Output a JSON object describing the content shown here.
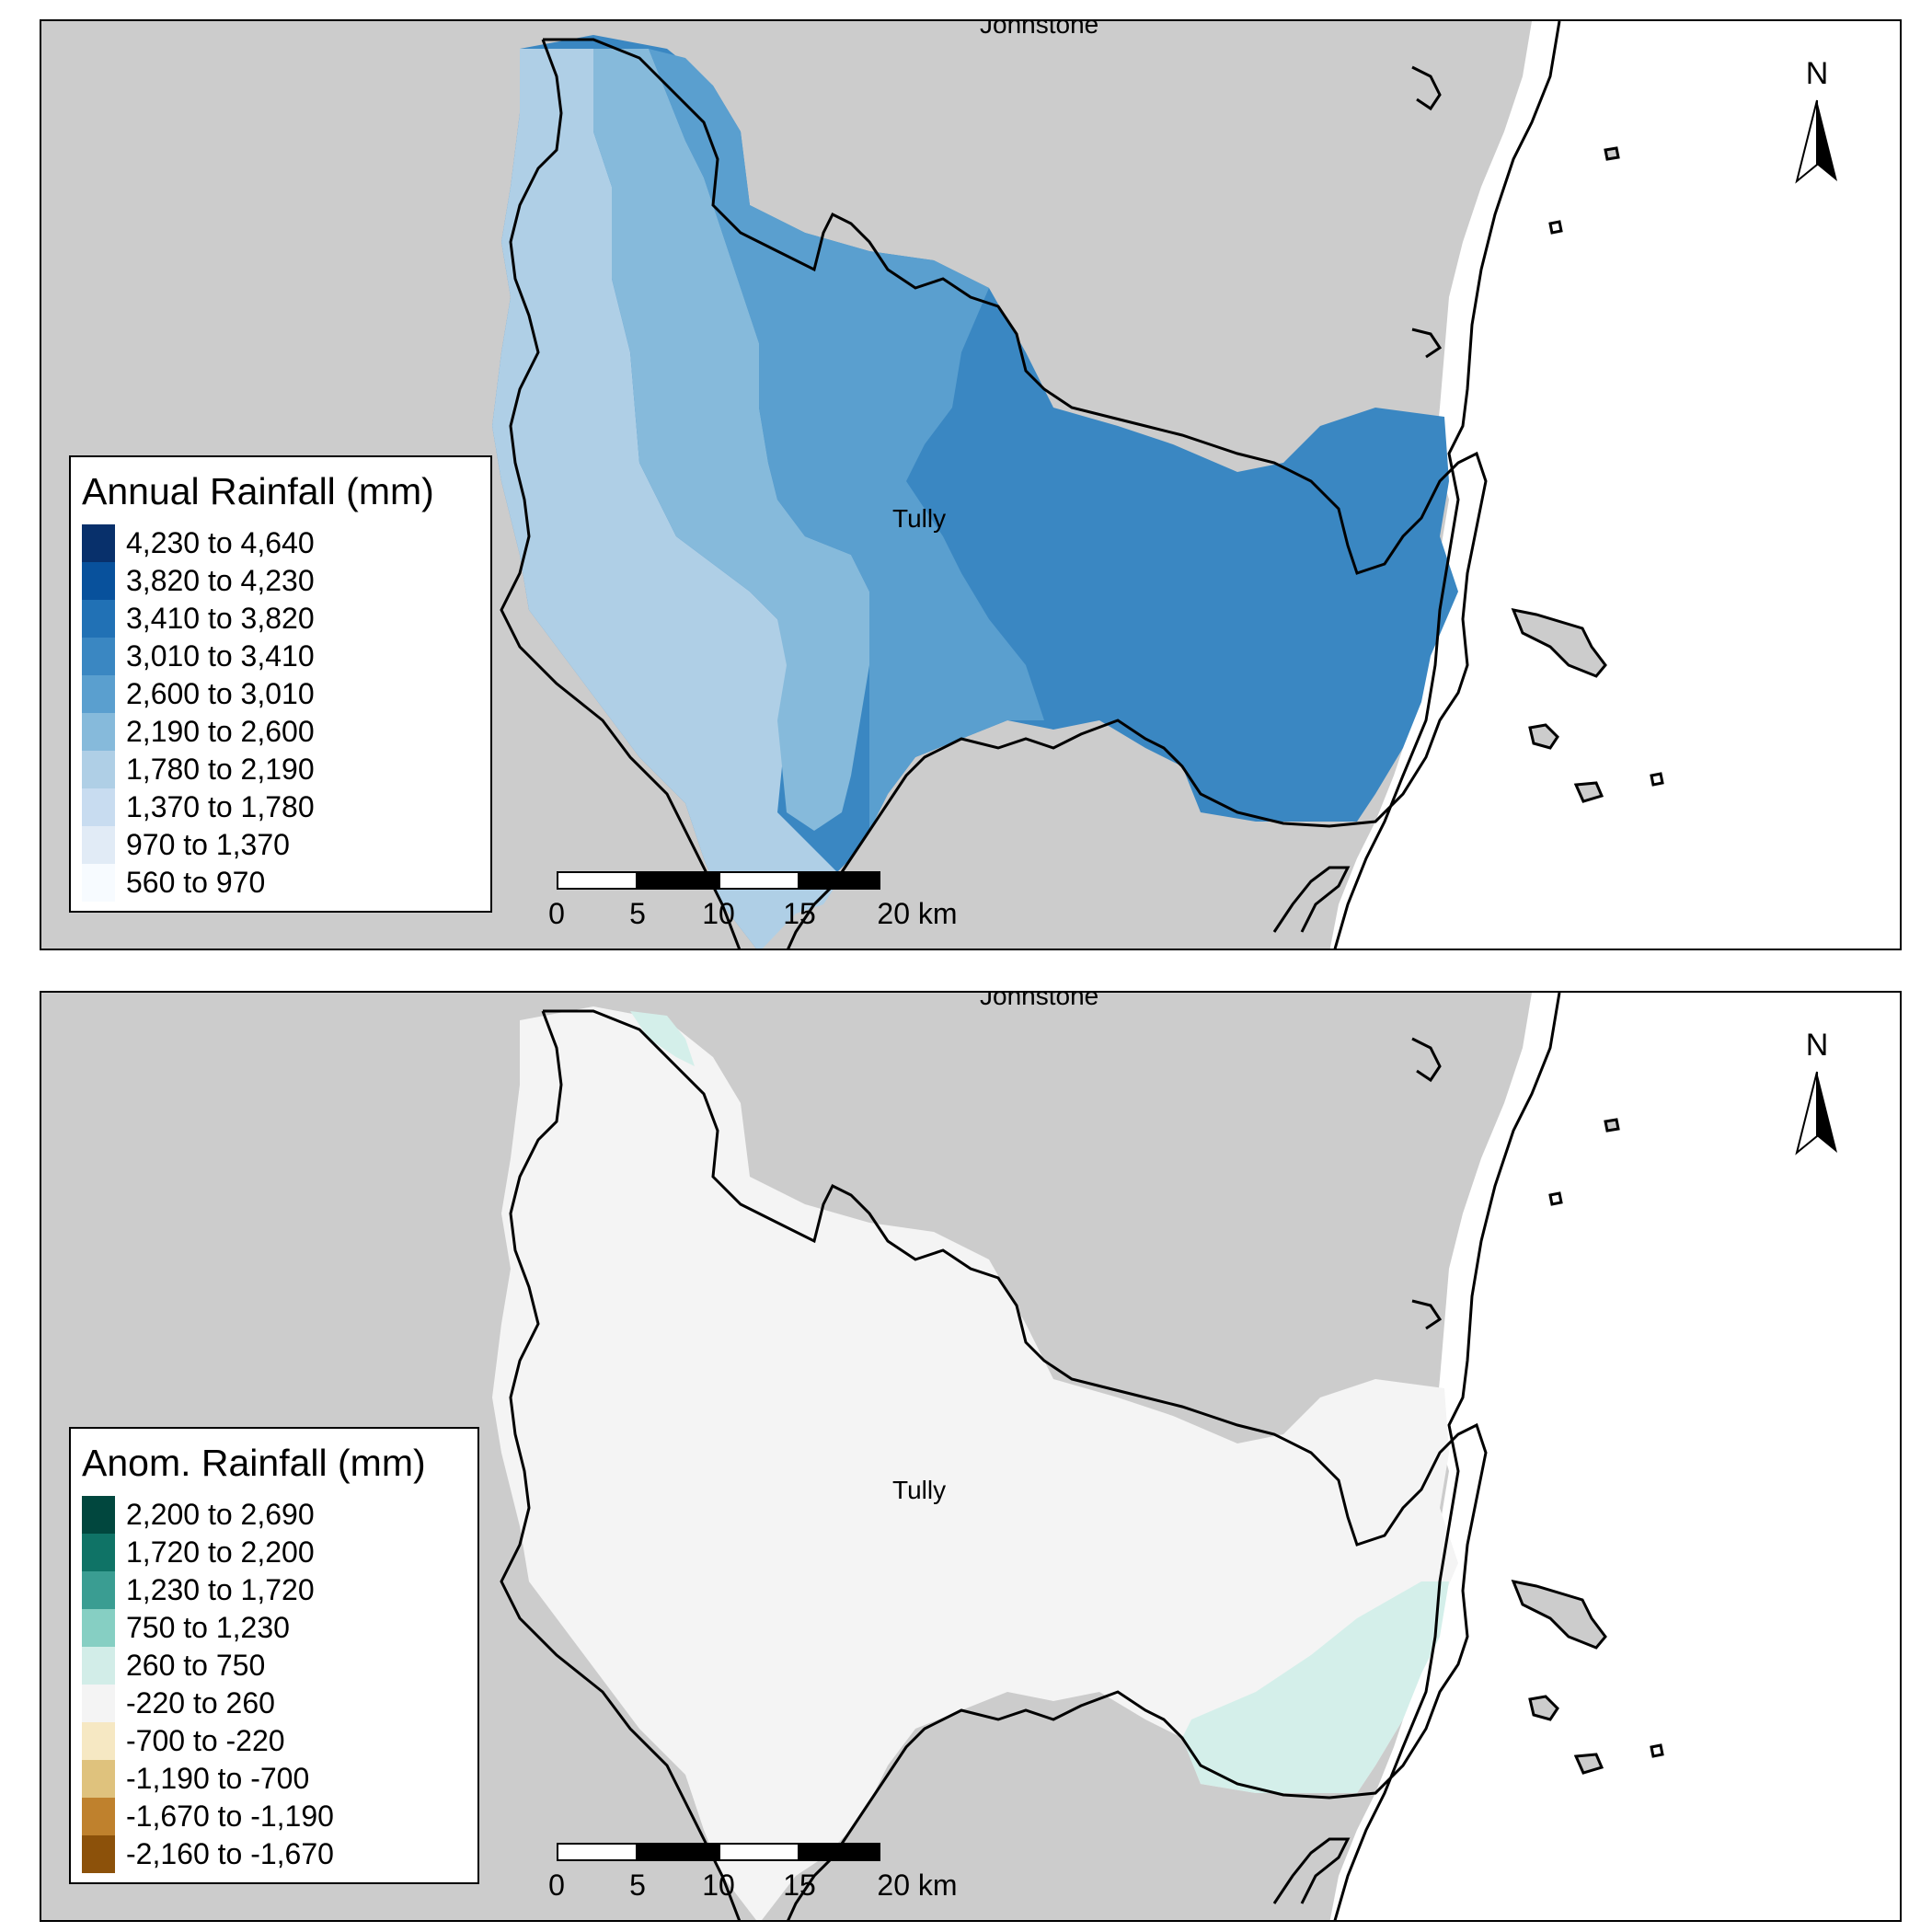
{
  "colors": {
    "land": "#cccccc",
    "sea": "#ffffff",
    "outline": "#000000",
    "top_main": "#3a87c2",
    "top_mid": "#5a9fcf",
    "top_light": "#86badb",
    "top_lighter": "#afcfe6",
    "bottom_main": "#f4f4f4",
    "bottom_teal": "#d4efea"
  },
  "top_map": {
    "place_top": "Johnstone",
    "place_center": "Tully",
    "legend": {
      "title": "Annual Rainfall (mm)",
      "items": [
        {
          "label": "4,230 to 4,640",
          "color": "#08306b"
        },
        {
          "label": "3,820 to 4,230",
          "color": "#08519c"
        },
        {
          "label": "3,410 to 3,820",
          "color": "#2171b5"
        },
        {
          "label": "3,010 to 3,410",
          "color": "#3a87c2"
        },
        {
          "label": "2,600 to 3,010",
          "color": "#5a9fcf"
        },
        {
          "label": "2,190 to 2,600",
          "color": "#86badb"
        },
        {
          "label": "1,780 to 2,190",
          "color": "#afcfe6"
        },
        {
          "label": "1,370 to 1,780",
          "color": "#c8dcf0"
        },
        {
          "label": "970 to 1,370",
          "color": "#e1ebf6"
        },
        {
          "label": "560 to 970",
          "color": "#f7fbff"
        }
      ]
    }
  },
  "bottom_map": {
    "place_top": "Johnstone",
    "place_center": "Tully",
    "legend": {
      "title": "Anom. Rainfall (mm)",
      "items": [
        {
          "label": "2,200 to 2,690",
          "color": "#01473e"
        },
        {
          "label": "1,720 to 2,200",
          "color": "#0f7366"
        },
        {
          "label": "1,230 to 1,720",
          "color": "#3a9d92"
        },
        {
          "label": "750 to 1,230",
          "color": "#86cfc3"
        },
        {
          "label": "260 to 750",
          "color": "#d2ede8"
        },
        {
          "label": "-220 to 260",
          "color": "#f4f4f4"
        },
        {
          "label": "-700 to -220",
          "color": "#f6e8c3"
        },
        {
          "label": "-1,190 to -700",
          "color": "#dfc27d"
        },
        {
          "label": "-1,670 to -1,190",
          "color": "#bf812d"
        },
        {
          "label": "-2,160 to -1,670",
          "color": "#8c510a"
        }
      ]
    }
  },
  "north_arrow": {
    "label": "N"
  },
  "scale_bar": {
    "ticks": [
      "0",
      "5",
      "10",
      "15",
      "20 km"
    ]
  }
}
